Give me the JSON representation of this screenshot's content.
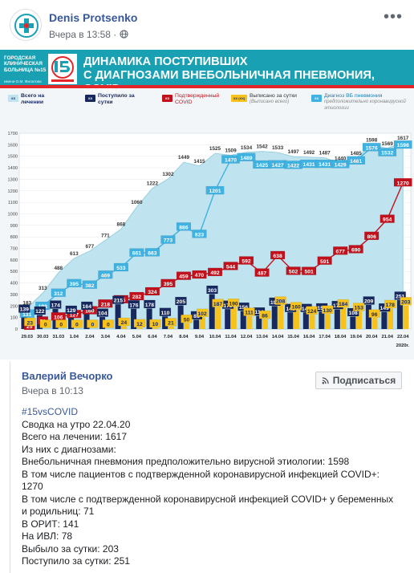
{
  "post": {
    "author": "Denis Protsenko",
    "time": "Вчера в 13:58 · ",
    "menu_icon": "ellipsis-icon",
    "privacy_icon": "globe-icon"
  },
  "banner": {
    "org_name": "ГОРОДСКАЯ КЛИНИЧЕСКАЯ БОЛЬНИЦА №15",
    "org_sub": "имени О.М. Филатова",
    "title_line1": "ДИНАМИКА ПОСТУПИВШИХ",
    "title_line2": "С ДИАГНОЗАМИ ВНЕБОЛЬНИЧНАЯ ПНЕВМОНИЯ, COVID"
  },
  "legend": [
    {
      "label": "Всего на лечении",
      "sub": "",
      "swatch": "XX",
      "color": "#bfe3ef"
    },
    {
      "label": "Поступило за сутки",
      "sub": "",
      "swatch": "XX",
      "color": "#17285f"
    },
    {
      "label": "Подтвержденный COVID",
      "sub": "",
      "swatch": "XX",
      "color": "#c0111c"
    },
    {
      "label": "Выписано за сутки",
      "sub": "(Выписано всего)",
      "swatch": "XX (XX)",
      "color": "#f6c21b"
    },
    {
      "label": "Диагноз ВБ пневмония",
      "sub": "предположительно коронавирусной этиологии",
      "swatch": "XX",
      "color": "#3fb2e2"
    }
  ],
  "chart_data": {
    "type": "bar",
    "categories": [
      "29.03",
      "30.03",
      "31.03",
      "1.04",
      "2.04",
      "3.04",
      "4.04",
      "5.04",
      "6.04",
      "7.04",
      "8.04",
      "9.04",
      "10.04",
      "11.04",
      "12.04",
      "13.04",
      "14.04",
      "15.04",
      "16.04",
      "17.04",
      "18.04",
      "19.04",
      "20.04",
      "21.04",
      "22.04"
    ],
    "series": [
      {
        "name": "Всего на лечении",
        "kind": "area",
        "color": "#bfe3ef",
        "values": [
          183,
          313,
          488,
          613,
          677,
          771,
          868,
          1060,
          1222,
          1302,
          1449,
          1415,
          1525,
          1509,
          1534,
          1542,
          1533,
          1497,
          1492,
          1487,
          1440,
          1485,
          1598,
          1569,
          1617
        ]
      },
      {
        "name": "Поступило за сутки",
        "kind": "bar",
        "color": "#17285f",
        "values": [
          139,
          122,
          174,
          129,
          164,
          104,
          215,
          176,
          178,
          110,
          205,
          81,
          303,
          173,
          156,
          114,
          199,
          145,
          145,
          150,
          170,
          108,
          209,
          149,
          251
        ]
      },
      {
        "name": "Выписано за сутки",
        "kind": "bar",
        "color": "#f6c21b",
        "values": [
          23,
          0,
          0,
          0,
          0,
          0,
          24,
          12,
          10,
          21,
          50,
          102,
          187,
          190,
          111,
          86,
          208,
          160,
          124,
          130,
          184,
          153,
          96,
          178,
          203
        ]
      },
      {
        "name": "Подтвержденный COVID",
        "kind": "line",
        "color": "#c0111c",
        "values": [
          null,
          null,
          106,
          127,
          160,
          218,
          255,
          282,
          324,
          395,
          459,
          470,
          492,
          544,
          592,
          487,
          638,
          502,
          501,
          591,
          677,
          690,
          806,
          954,
          1270
        ]
      },
      {
        "name": "Диагноз ВБ пневмония",
        "kind": "line",
        "color": "#3fb2e2",
        "values": [
          131,
          198,
          312,
          395,
          382,
          469,
          533,
          661,
          663,
          773,
          886,
          823,
          1201,
          1470,
          1489,
          1425,
          1427,
          1422,
          1431,
          1431,
          1429,
          1461,
          1576,
          1532,
          1598
        ]
      }
    ],
    "red_labels": [
      [
        "25",
        0.15
      ],
      [
        "70",
        1
      ],
      [
        "106",
        2
      ],
      [
        "127",
        3
      ],
      [
        "160",
        4
      ],
      [
        "218",
        5
      ],
      [
        "255",
        6
      ],
      [
        "282",
        7
      ],
      [
        "324",
        8
      ],
      [
        "395",
        9
      ],
      [
        "459",
        10
      ],
      [
        "470",
        11
      ],
      [
        "492",
        12
      ],
      [
        "544",
        13
      ],
      [
        "592",
        14
      ],
      [
        "487",
        15
      ],
      [
        "638",
        16
      ],
      [
        "502",
        17
      ],
      [
        "501",
        18
      ],
      [
        "591",
        19
      ],
      [
        "677",
        20
      ],
      [
        "690",
        21
      ],
      [
        "806",
        22
      ],
      [
        "954",
        23
      ],
      [
        "1270",
        24
      ]
    ],
    "ylim": [
      0,
      1700
    ],
    "yticks": [
      0,
      100,
      200,
      300,
      400,
      500,
      600,
      700,
      800,
      900,
      1000,
      1100,
      1200,
      1300,
      1400,
      1500,
      1600,
      1700
    ],
    "year_label": "2020г."
  },
  "comment": {
    "author": "Валерий Вечорко",
    "time": "Вчера в 10:13",
    "subscribe_label": "Подписаться",
    "subscribe_icon": "rss-icon",
    "lines": [
      "#15vsCOVID",
      "Сводка на утро 22.04.20",
      "Всего на лечении: 1617",
      "Из них с диагнозами:",
      "Внебольничная пневмония предположительно вирусной этиологии: 1598",
      "В том числе пациентов с подтвержденной коронавирусной инфекцией COVID+: 1270",
      "В том числе с подтвержденной коронавирусной инфекцией COVID+ у беременных и родильниц: 71",
      "В ОРИТ: 141",
      "На ИВЛ: 78",
      "Выбыло за сутки: 203",
      "Поступило за сутки: 251"
    ]
  }
}
